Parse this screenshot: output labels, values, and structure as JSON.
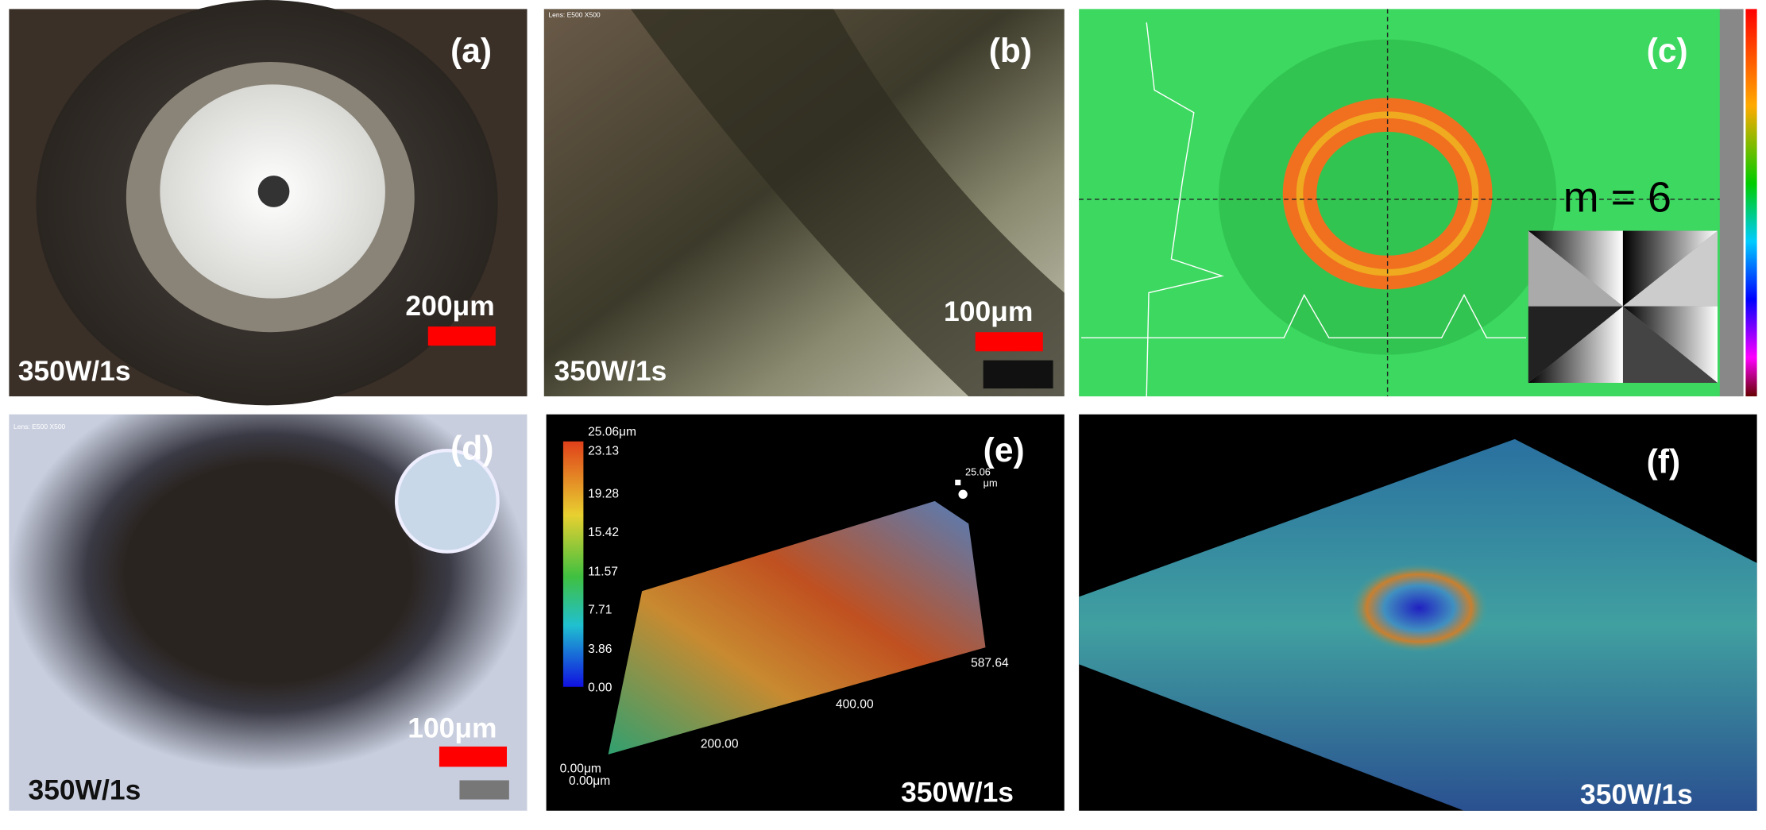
{
  "panels": [
    {
      "label": "(a)",
      "scale_bar": "200μm",
      "condition": "350W/1s"
    },
    {
      "label": "(b)",
      "lens": "Lens: E500 X500",
      "scale_bar": "100μm",
      "condition": "350W/1s"
    },
    {
      "label": "(c)",
      "mode": "m = 6"
    },
    {
      "label": "(d)",
      "lens": "Lens: E500 X500",
      "scale_bar": "100μm",
      "condition": "350W/1s"
    },
    {
      "label": "(e)",
      "colorbar_labels": [
        "25.06μm",
        "23.13",
        "19.28",
        "15.42",
        "11.57",
        "7.71",
        "3.86",
        "0.00"
      ],
      "max_label": [
        "25.06",
        "μm"
      ],
      "axis_labels": [
        "587.64",
        "400.00",
        "200.00",
        "0.00μm",
        "0.00μm"
      ],
      "condition": "350W/1s"
    },
    {
      "label": "(f)",
      "condition": "350W/1s"
    }
  ]
}
